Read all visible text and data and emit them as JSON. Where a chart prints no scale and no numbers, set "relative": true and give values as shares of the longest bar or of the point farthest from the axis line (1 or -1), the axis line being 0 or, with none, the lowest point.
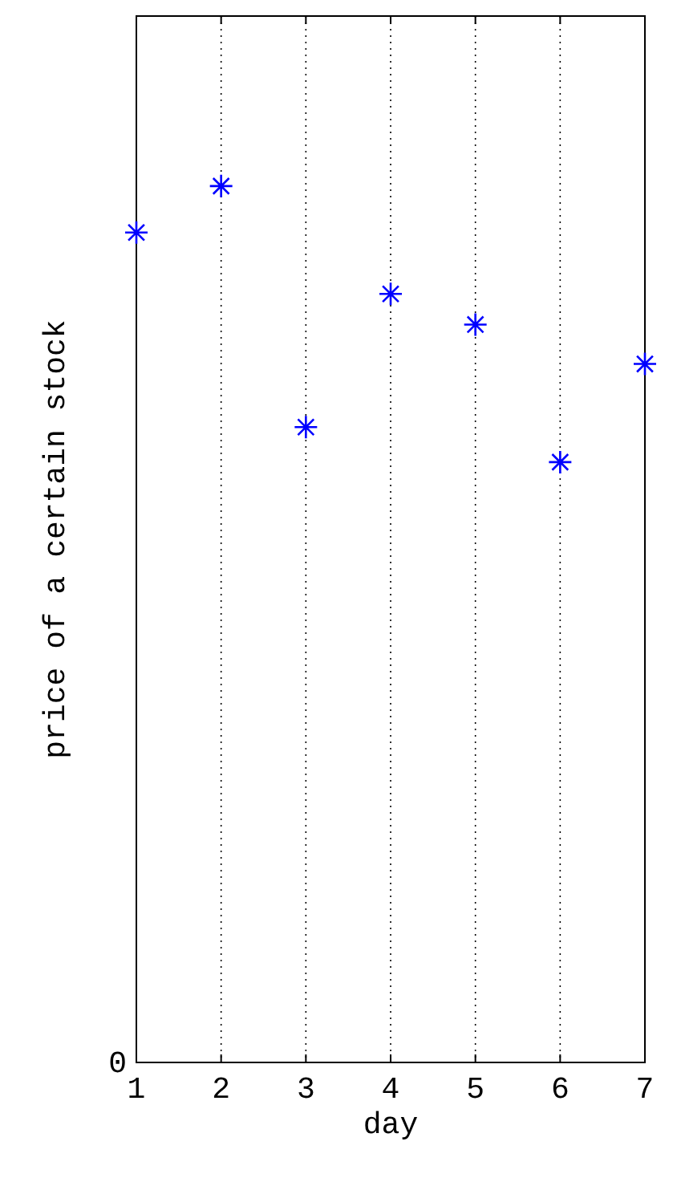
{
  "chart_data": {
    "type": "scatter",
    "xlabel": "day",
    "ylabel": "price of a certain stock",
    "x": [
      1,
      2,
      3,
      4,
      5,
      6,
      7
    ],
    "values": [
      0.947,
      1,
      0.725,
      0.877,
      0.842,
      0.685,
      0.797
    ],
    "color": "#0000ff",
    "relative": true,
    "xlim": [
      1,
      7
    ],
    "xticks": [
      1,
      2,
      3,
      4,
      5,
      6,
      7
    ],
    "grid": "x",
    "marker": "cross",
    "annotations": [
      "0"
    ]
  }
}
